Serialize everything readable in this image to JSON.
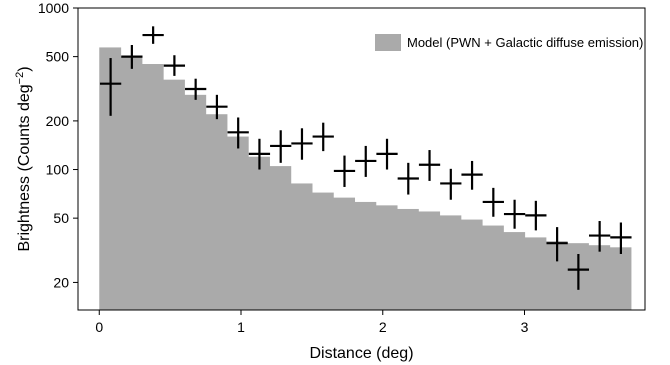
{
  "chart_data": {
    "type": "bar",
    "xlabel": "Distance (deg)",
    "ylabel_main": "Brightness  (Counts deg",
    "ylabel_exponent": "−2",
    "ylabel_close": ")",
    "yscale": "log",
    "xlim": [
      -0.15,
      3.85
    ],
    "ylim": [
      13.5,
      1000
    ],
    "x_ticks": [
      0,
      1,
      2,
      3
    ],
    "x_tick_labels": [
      "0",
      "1",
      "2",
      "3"
    ],
    "y_ticks": [
      20,
      50,
      100,
      200,
      500,
      1000
    ],
    "y_tick_labels": [
      "20",
      "50",
      "100",
      "200",
      "500",
      "1000"
    ],
    "legend": {
      "label": "Model (PWN + Galactic diffuse emission)",
      "color": "#aaaaaa",
      "position": "top-right"
    },
    "model_histogram": {
      "name": "Model (PWN + Galactic diffuse emission)",
      "color": "#aaaaaa",
      "bin_edges": [
        0,
        0.15,
        0.3,
        0.45,
        0.6,
        0.75,
        0.9,
        1.05,
        1.2,
        1.35,
        1.5,
        1.65,
        1.8,
        1.95,
        2.1,
        2.25,
        2.4,
        2.55,
        2.7,
        2.85,
        3.0,
        3.15,
        3.3,
        3.45,
        3.6,
        3.75
      ],
      "values": [
        570,
        500,
        450,
        360,
        290,
        220,
        160,
        120,
        105,
        82,
        72,
        67,
        63,
        60,
        57,
        55,
        52,
        49,
        45,
        41,
        38,
        36,
        35,
        34,
        33
      ]
    },
    "data_points": {
      "color": "#000000",
      "x": [
        0.08,
        0.23,
        0.38,
        0.53,
        0.68,
        0.83,
        0.98,
        1.13,
        1.28,
        1.43,
        1.58,
        1.73,
        1.88,
        2.03,
        2.18,
        2.33,
        2.48,
        2.63,
        2.78,
        2.93,
        3.08,
        3.23,
        3.38,
        3.53,
        3.68
      ],
      "y": [
        340,
        500,
        680,
        440,
        315,
        245,
        170,
        125,
        140,
        145,
        160,
        98,
        113,
        125,
        88,
        107,
        82,
        93,
        63,
        53,
        52,
        35,
        24,
        39,
        38
      ],
      "y_low": [
        215,
        420,
        600,
        380,
        270,
        205,
        135,
        100,
        110,
        115,
        130,
        78,
        90,
        100,
        70,
        85,
        65,
        75,
        51,
        43,
        42,
        27,
        18,
        31,
        30
      ],
      "y_high": [
        490,
        590,
        770,
        510,
        365,
        290,
        210,
        155,
        175,
        180,
        195,
        122,
        140,
        155,
        110,
        132,
        101,
        113,
        77,
        65,
        64,
        44,
        30,
        48,
        47
      ],
      "x_halfwidth": 0.075
    }
  }
}
